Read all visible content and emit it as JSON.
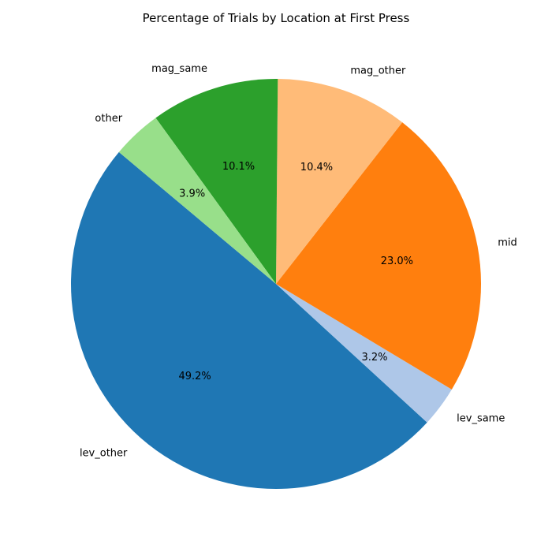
{
  "chart_data": {
    "type": "pie",
    "title": "Percentage of Trials by Location at First Press",
    "slices": [
      {
        "label": "lev_other",
        "value": 49.2,
        "pct_label": "49.2%",
        "color": "#1f77b4"
      },
      {
        "label": "lev_same",
        "value": 3.2,
        "pct_label": "3.2%",
        "color": "#aec7e8"
      },
      {
        "label": "mid",
        "value": 23.0,
        "pct_label": "23.0%",
        "color": "#ff7f0e"
      },
      {
        "label": "mag_other",
        "value": 10.4,
        "pct_label": "10.4%",
        "color": "#ffbb78"
      },
      {
        "label": "mag_same",
        "value": 10.1,
        "pct_label": "10.1%",
        "color": "#2ca02c"
      },
      {
        "label": "other",
        "value": 3.9,
        "pct_label": "3.9%",
        "color": "#98df8a"
      }
    ],
    "start_angle_deg": 140,
    "direction": "counterclockwise"
  }
}
